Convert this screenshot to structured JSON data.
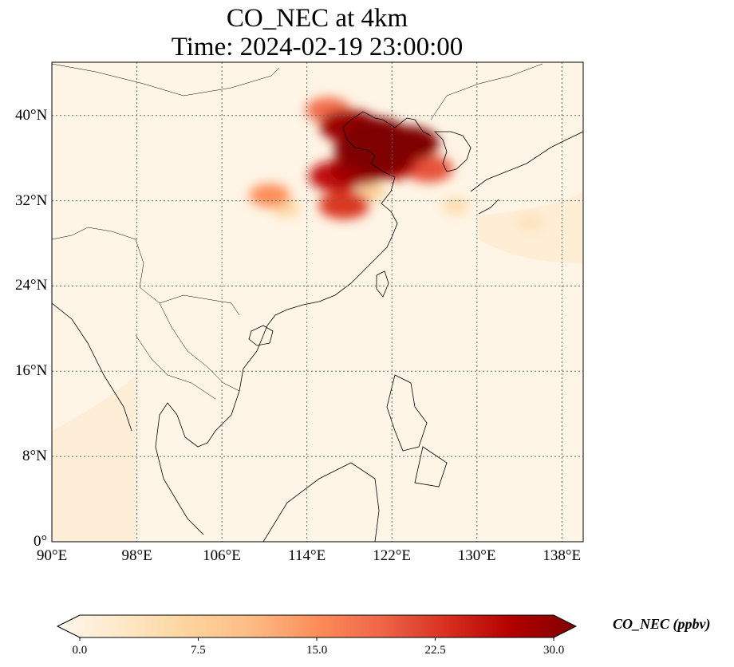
{
  "title": {
    "line1": "CO_NEC at 4km",
    "line2": "Time: 2024-02-19 23:00:00"
  },
  "map": {
    "extent": {
      "lon": [
        90,
        140
      ],
      "lat": [
        0,
        45
      ]
    },
    "lon_ticks": [
      {
        "value": 90,
        "label": "90°E"
      },
      {
        "value": 98,
        "label": "98°E"
      },
      {
        "value": 106,
        "label": "106°E"
      },
      {
        "value": 114,
        "label": "114°E"
      },
      {
        "value": 122,
        "label": "122°E"
      },
      {
        "value": 130,
        "label": "130°E"
      },
      {
        "value": 138,
        "label": "138°E"
      }
    ],
    "lat_ticks": [
      {
        "value": 0,
        "label": "0°"
      },
      {
        "value": 8,
        "label": "8°N"
      },
      {
        "value": 16,
        "label": "16°N"
      },
      {
        "value": 24,
        "label": "24°N"
      },
      {
        "value": 32,
        "label": "32°N"
      },
      {
        "value": 40,
        "label": "40°N"
      }
    ],
    "gridlines": "dotted",
    "plume_cells": [
      {
        "lon": 118.0,
        "lat": 39.0,
        "value": 28
      },
      {
        "lon": 120.5,
        "lat": 38.2,
        "value": 30
      },
      {
        "lon": 123.5,
        "lat": 37.4,
        "value": 30
      },
      {
        "lon": 119.5,
        "lat": 36.8,
        "value": 30
      },
      {
        "lon": 121.0,
        "lat": 36.0,
        "value": 30
      },
      {
        "lon": 119.0,
        "lat": 35.0,
        "value": 28
      },
      {
        "lon": 121.8,
        "lat": 35.4,
        "value": 25
      },
      {
        "lon": 125.5,
        "lat": 35.0,
        "value": 20
      },
      {
        "lon": 116.8,
        "lat": 34.3,
        "value": 25
      },
      {
        "lon": 117.5,
        "lat": 31.6,
        "value": 22
      },
      {
        "lon": 110.5,
        "lat": 32.5,
        "value": 15
      },
      {
        "lon": 116.0,
        "lat": 40.5,
        "value": 18
      },
      {
        "lon": 120.0,
        "lat": 32.8,
        "value": 8
      },
      {
        "lon": 128.0,
        "lat": 31.5,
        "value": 6
      },
      {
        "lon": 135.0,
        "lat": 30.0,
        "value": 5
      },
      {
        "lon": 112.0,
        "lat": 31.3,
        "value": 7
      }
    ]
  },
  "colorbar": {
    "label": "CO_NEC (ppbv)",
    "min": 0.0,
    "max": 30.0,
    "extend": "both",
    "colormap": "OrRd",
    "ticks": [
      "0.0",
      "7.5",
      "15.0",
      "22.5",
      "30.0"
    ],
    "colors": [
      "#fff7ec",
      "#fee8c8",
      "#fdd49e",
      "#fdbb84",
      "#fc8d59",
      "#ef6548",
      "#d7301f",
      "#b30000",
      "#7f0000"
    ]
  }
}
